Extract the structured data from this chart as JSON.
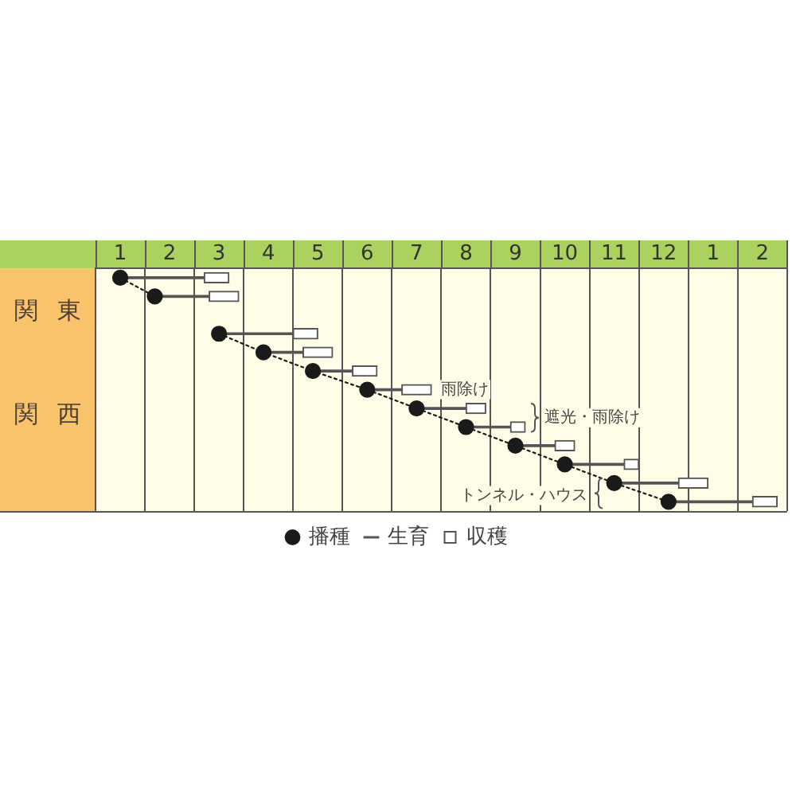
{
  "chart_data": {
    "type": "bar",
    "orientation": "horizontal",
    "categories": [
      null,
      null,
      null,
      null,
      null,
      null,
      null,
      null,
      null,
      null,
      null,
      null,
      null
    ],
    "series": [
      {
        "name": "播種",
        "type": "line",
        "color": "#1a1a1a",
        "values": [
          1.0,
          1.7,
          null,
          null,
          null,
          null,
          null,
          null,
          null,
          null,
          null,
          null,
          null
        ]
      },
      {
        "type": "line",
        "color": "#1a1a1a",
        "values": [
          null,
          null,
          null,
          3.0,
          3.9,
          4.9,
          6.0,
          7.0,
          8.0,
          9.0,
          10.0,
          11.0,
          12.1
        ]
      },
      {
        "name": "生育",
        "color": "#555555",
        "base": [
          1.0,
          1.7,
          null,
          3.0,
          3.9,
          4.9,
          6.0,
          7.0,
          8.0,
          9.0,
          10.0,
          11.0,
          12.1
        ],
        "values": [
          1.7,
          1.1,
          null,
          1.5,
          0.8,
          0.8,
          0.7,
          1.0,
          0.9,
          0.8,
          1.2,
          1.3,
          1.7
        ]
      },
      {
        "name": "収穫",
        "color": "#ffffff",
        "base": [
          2.7,
          2.8,
          null,
          4.5,
          4.7,
          5.7,
          6.7,
          8.0,
          8.9,
          9.8,
          11.2,
          12.3,
          13.8
        ],
        "values": [
          0.5,
          0.6,
          null,
          0.5,
          0.6,
          0.5,
          0.6,
          0.4,
          0.3,
          0.4,
          0.3,
          0.6,
          0.5
        ]
      }
    ],
    "xlim": [
      0.5,
      14.5
    ],
    "xticks": [
      {
        "value": 0.5,
        "label": null
      },
      1,
      {
        "value": 1.5,
        "label": null
      },
      2,
      {
        "value": 2.5,
        "label": null
      },
      3,
      {
        "value": 3.5,
        "label": null
      },
      4,
      {
        "value": 4.5,
        "label": null
      },
      5,
      {
        "value": 5.5,
        "label": null
      },
      6,
      {
        "value": 6.5,
        "label": null
      },
      7,
      {
        "value": 7.5,
        "label": null
      },
      8,
      {
        "value": 8.5,
        "label": null
      },
      9,
      {
        "value": 9.5,
        "label": null
      },
      10,
      {
        "value": 10.5,
        "label": null
      },
      11,
      {
        "value": 11.5,
        "label": null
      },
      12,
      {
        "value": 12.5,
        "label": null
      },
      {
        "value": 13.5,
        "label": null
      },
      {
        "value": 14.5,
        "label": null
      }
    ],
    "x2lim": [
      -11.5,
      2.5
    ],
    "x2ticks": [
      1,
      2
    ],
    "ylabel": "関東関西",
    "annotations": [
      "雨除け",
      "遮光・雨除け",
      "トンネル・ハウス"
    ],
    "grid": "x",
    "legend": "bottom",
    "tick_labels": "x",
    "marker": "circle",
    "line_style": "dotted"
  }
}
